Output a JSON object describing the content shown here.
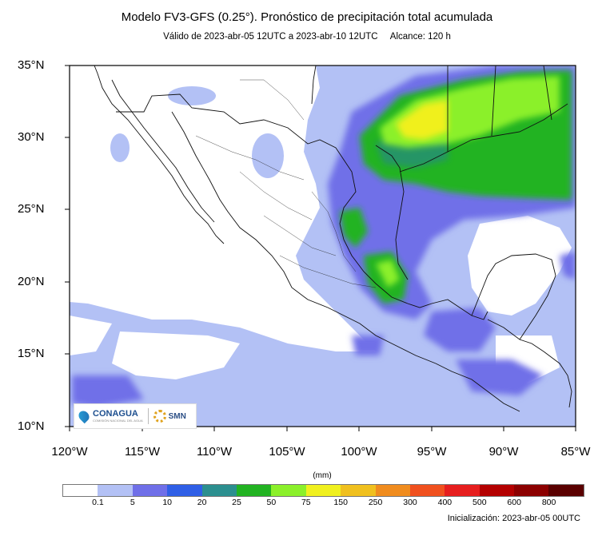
{
  "header": {
    "title": "Modelo FV3-GFS (0.25°). Pronóstico de precipitación total acumulada",
    "valid": "Válido de 2023-abr-05 12UTC a 2023-abr-10 12UTC",
    "range": "Alcance: 120 h"
  },
  "axes": {
    "lat_labels": [
      "35°N",
      "30°N",
      "25°N",
      "20°N",
      "15°N",
      "10°N"
    ],
    "lon_labels": [
      "120°W",
      "115°W",
      "110°W",
      "105°W",
      "100°W",
      "95°W",
      "90°W",
      "85°W"
    ]
  },
  "logos": {
    "conagua": "CONAGUA",
    "conagua_sub": "COMISIÓN NACIONAL DEL AGUA",
    "smn": "SMN"
  },
  "colorbar": {
    "units": "(mm)",
    "colors": [
      "#ffffff",
      "#b3c1f5",
      "#6f6fe8",
      "#2f5fe6",
      "#2b8f8f",
      "#22b322",
      "#8bf02a",
      "#f0f01e",
      "#f0c01e",
      "#f08c1e",
      "#f0501e",
      "#e61e1e",
      "#b40000",
      "#8c0000",
      "#5a0000"
    ],
    "ticks": [
      "0.1",
      "5",
      "10",
      "20",
      "25",
      "50",
      "75",
      "150",
      "250",
      "300",
      "400",
      "500",
      "600",
      "800"
    ]
  },
  "footer": {
    "init": "Inicialización: 2023-abr-05 00UTC"
  }
}
